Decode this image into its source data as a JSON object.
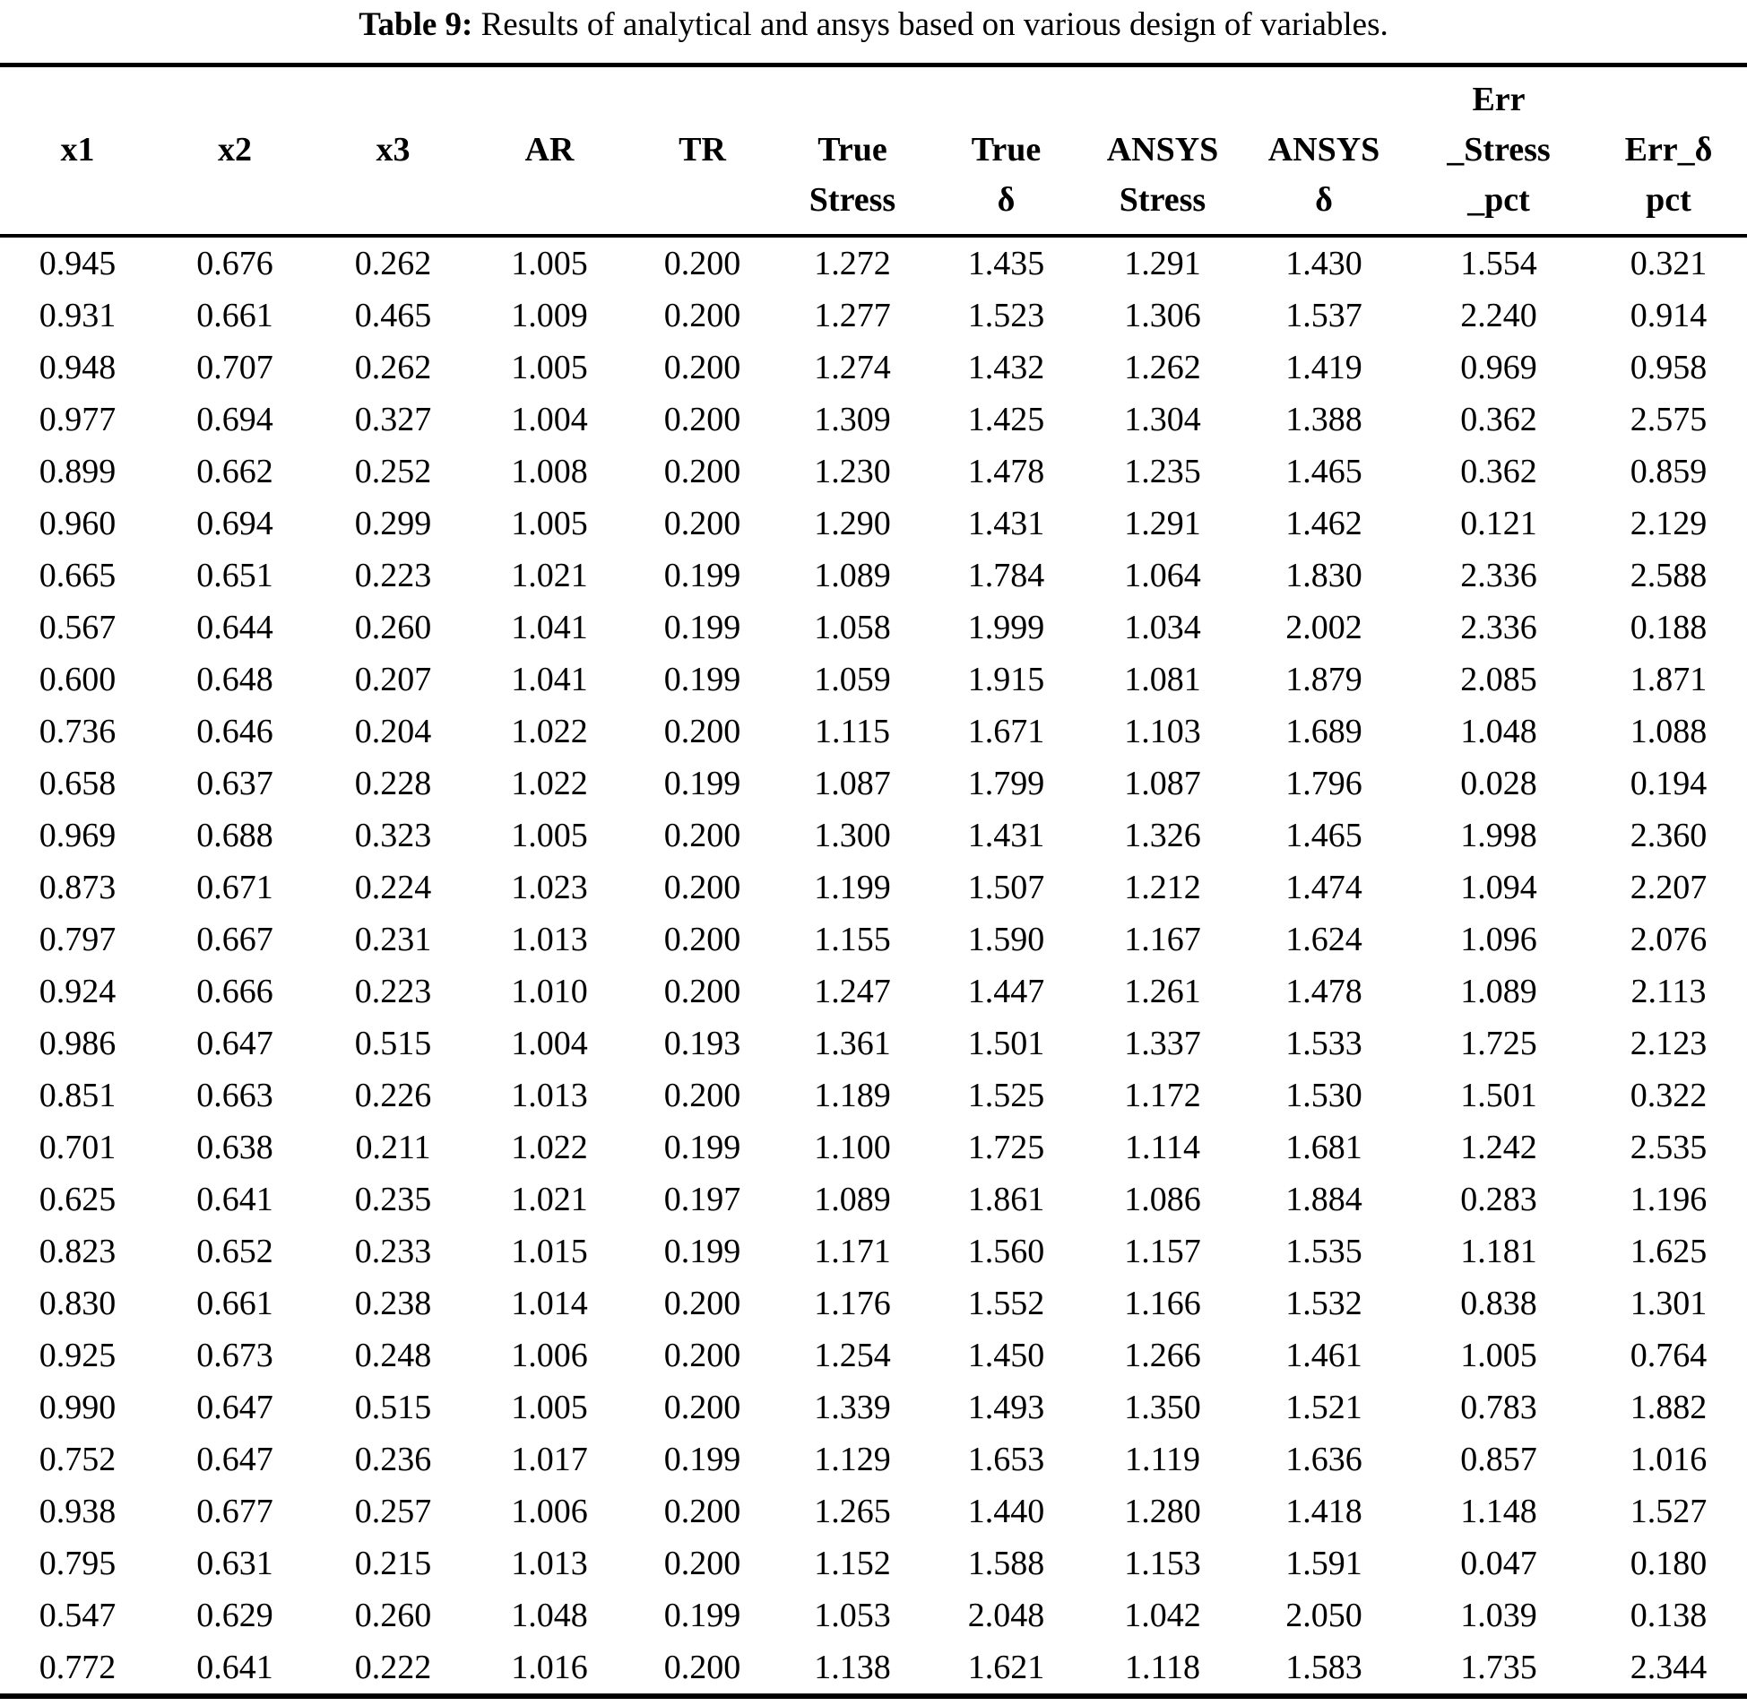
{
  "caption": {
    "label": "Table 9:",
    "text": " Results of analytical and ansys based on various design of variables."
  },
  "table": {
    "columns": [
      {
        "key": "x1",
        "lines": [
          "",
          "x1",
          ""
        ]
      },
      {
        "key": "x2",
        "lines": [
          "",
          "x2",
          ""
        ]
      },
      {
        "key": "x3",
        "lines": [
          "",
          "x3",
          ""
        ]
      },
      {
        "key": "ar",
        "lines": [
          "",
          "AR",
          ""
        ]
      },
      {
        "key": "tr",
        "lines": [
          "",
          "TR",
          ""
        ]
      },
      {
        "key": "true-stress",
        "lines": [
          "",
          "True",
          "Stress"
        ]
      },
      {
        "key": "true-delta",
        "lines": [
          "",
          "True",
          "δ"
        ]
      },
      {
        "key": "ansys-stress",
        "lines": [
          "",
          "ANSYS",
          "Stress"
        ]
      },
      {
        "key": "ansys-delta",
        "lines": [
          "",
          "ANSYS",
          "δ"
        ]
      },
      {
        "key": "err-stress-pct",
        "lines": [
          "Err",
          "_Stress",
          "_pct"
        ]
      },
      {
        "key": "err-delta-pct",
        "lines": [
          "",
          "Err_δ",
          "pct"
        ]
      }
    ],
    "rows": [
      [
        "0.945",
        "0.676",
        "0.262",
        "1.005",
        "0.200",
        "1.272",
        "1.435",
        "1.291",
        "1.430",
        "1.554",
        "0.321"
      ],
      [
        "0.931",
        "0.661",
        "0.465",
        "1.009",
        "0.200",
        "1.277",
        "1.523",
        "1.306",
        "1.537",
        "2.240",
        "0.914"
      ],
      [
        "0.948",
        "0.707",
        "0.262",
        "1.005",
        "0.200",
        "1.274",
        "1.432",
        "1.262",
        "1.419",
        "0.969",
        "0.958"
      ],
      [
        "0.977",
        "0.694",
        "0.327",
        "1.004",
        "0.200",
        "1.309",
        "1.425",
        "1.304",
        "1.388",
        "0.362",
        "2.575"
      ],
      [
        "0.899",
        "0.662",
        "0.252",
        "1.008",
        "0.200",
        "1.230",
        "1.478",
        "1.235",
        "1.465",
        "0.362",
        "0.859"
      ],
      [
        "0.960",
        "0.694",
        "0.299",
        "1.005",
        "0.200",
        "1.290",
        "1.431",
        "1.291",
        "1.462",
        "0.121",
        "2.129"
      ],
      [
        "0.665",
        "0.651",
        "0.223",
        "1.021",
        "0.199",
        "1.089",
        "1.784",
        "1.064",
        "1.830",
        "2.336",
        "2.588"
      ],
      [
        "0.567",
        "0.644",
        "0.260",
        "1.041",
        "0.199",
        "1.058",
        "1.999",
        "1.034",
        "2.002",
        "2.336",
        "0.188"
      ],
      [
        "0.600",
        "0.648",
        "0.207",
        "1.041",
        "0.199",
        "1.059",
        "1.915",
        "1.081",
        "1.879",
        "2.085",
        "1.871"
      ],
      [
        "0.736",
        "0.646",
        "0.204",
        "1.022",
        "0.200",
        "1.115",
        "1.671",
        "1.103",
        "1.689",
        "1.048",
        "1.088"
      ],
      [
        "0.658",
        "0.637",
        "0.228",
        "1.022",
        "0.199",
        "1.087",
        "1.799",
        "1.087",
        "1.796",
        "0.028",
        "0.194"
      ],
      [
        "0.969",
        "0.688",
        "0.323",
        "1.005",
        "0.200",
        "1.300",
        "1.431",
        "1.326",
        "1.465",
        "1.998",
        "2.360"
      ],
      [
        "0.873",
        "0.671",
        "0.224",
        "1.023",
        "0.200",
        "1.199",
        "1.507",
        "1.212",
        "1.474",
        "1.094",
        "2.207"
      ],
      [
        "0.797",
        "0.667",
        "0.231",
        "1.013",
        "0.200",
        "1.155",
        "1.590",
        "1.167",
        "1.624",
        "1.096",
        "2.076"
      ],
      [
        "0.924",
        "0.666",
        "0.223",
        "1.010",
        "0.200",
        "1.247",
        "1.447",
        "1.261",
        "1.478",
        "1.089",
        "2.113"
      ],
      [
        "0.986",
        "0.647",
        "0.515",
        "1.004",
        "0.193",
        "1.361",
        "1.501",
        "1.337",
        "1.533",
        "1.725",
        "2.123"
      ],
      [
        "0.851",
        "0.663",
        "0.226",
        "1.013",
        "0.200",
        "1.189",
        "1.525",
        "1.172",
        "1.530",
        "1.501",
        "0.322"
      ],
      [
        "0.701",
        "0.638",
        "0.211",
        "1.022",
        "0.199",
        "1.100",
        "1.725",
        "1.114",
        "1.681",
        "1.242",
        "2.535"
      ],
      [
        "0.625",
        "0.641",
        "0.235",
        "1.021",
        "0.197",
        "1.089",
        "1.861",
        "1.086",
        "1.884",
        "0.283",
        "1.196"
      ],
      [
        "0.823",
        "0.652",
        "0.233",
        "1.015",
        "0.199",
        "1.171",
        "1.560",
        "1.157",
        "1.535",
        "1.181",
        "1.625"
      ],
      [
        "0.830",
        "0.661",
        "0.238",
        "1.014",
        "0.200",
        "1.176",
        "1.552",
        "1.166",
        "1.532",
        "0.838",
        "1.301"
      ],
      [
        "0.925",
        "0.673",
        "0.248",
        "1.006",
        "0.200",
        "1.254",
        "1.450",
        "1.266",
        "1.461",
        "1.005",
        "0.764"
      ],
      [
        "0.990",
        "0.647",
        "0.515",
        "1.005",
        "0.200",
        "1.339",
        "1.493",
        "1.350",
        "1.521",
        "0.783",
        "1.882"
      ],
      [
        "0.752",
        "0.647",
        "0.236",
        "1.017",
        "0.199",
        "1.129",
        "1.653",
        "1.119",
        "1.636",
        "0.857",
        "1.016"
      ],
      [
        "0.938",
        "0.677",
        "0.257",
        "1.006",
        "0.200",
        "1.265",
        "1.440",
        "1.280",
        "1.418",
        "1.148",
        "1.527"
      ],
      [
        "0.795",
        "0.631",
        "0.215",
        "1.013",
        "0.200",
        "1.152",
        "1.588",
        "1.153",
        "1.591",
        "0.047",
        "0.180"
      ],
      [
        "0.547",
        "0.629",
        "0.260",
        "1.048",
        "0.199",
        "1.053",
        "2.048",
        "1.042",
        "2.050",
        "1.039",
        "0.138"
      ],
      [
        "0.772",
        "0.641",
        "0.222",
        "1.016",
        "0.200",
        "1.138",
        "1.621",
        "1.118",
        "1.583",
        "1.735",
        "2.344"
      ]
    ]
  }
}
